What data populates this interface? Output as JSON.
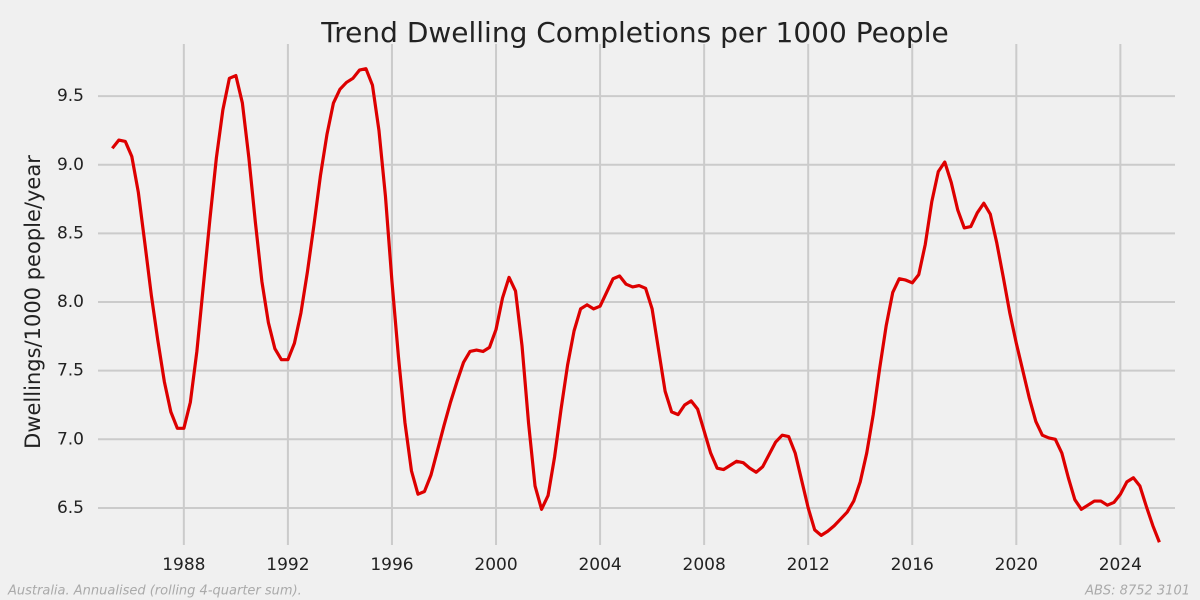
{
  "chart_data": {
    "type": "line",
    "title": "Trend Dwelling Completions per 1000 People",
    "y_label": "Dwellings/1000 people/year",
    "footnote_left": "Australia. Annualised (rolling 4-quarter sum).",
    "footnote_right": "ABS: 8752 3101",
    "grid": true,
    "xlim": [
      1984.7,
      2026.1
    ],
    "ylim": [
      6.23,
      9.88
    ],
    "xticks": [
      1988,
      1992,
      1996,
      2000,
      2004,
      2008,
      2012,
      2016,
      2020,
      2024
    ],
    "yticks": [
      6.5,
      {
        "value": 7,
        "label": "7.0"
      },
      7.5,
      {
        "value": 8,
        "label": "8.0"
      },
      8.5,
      {
        "value": 9,
        "label": "9.0"
      },
      9.5
    ],
    "x": [
      1985.25,
      1985.5,
      1985.75,
      1986,
      1986.25,
      1986.5,
      1986.75,
      1987,
      1987.25,
      1987.5,
      1987.75,
      1988,
      1988.25,
      1988.5,
      1988.75,
      1989,
      1989.25,
      1989.5,
      1989.75,
      1990,
      1990.25,
      1990.5,
      1990.75,
      1991,
      1991.25,
      1991.5,
      1991.75,
      1992,
      1992.25,
      1992.5,
      1992.75,
      1993,
      1993.25,
      1993.5,
      1993.75,
      1994,
      1994.25,
      1994.5,
      1994.75,
      1995,
      1995.25,
      1995.5,
      1995.75,
      1996,
      1996.25,
      1996.5,
      1996.75,
      1997,
      1997.25,
      1997.5,
      1997.75,
      1998,
      1998.25,
      1998.5,
      1998.75,
      1999,
      1999.25,
      1999.5,
      1999.75,
      2000,
      2000.25,
      2000.5,
      2000.75,
      2001,
      2001.25,
      2001.5,
      2001.75,
      2002,
      2002.25,
      2002.5,
      2002.75,
      2003,
      2003.25,
      2003.5,
      2003.75,
      2004,
      2004.25,
      2004.5,
      2004.75,
      2005,
      2005.25,
      2005.5,
      2005.75,
      2006,
      2006.25,
      2006.5,
      2006.75,
      2007,
      2007.25,
      2007.5,
      2007.75,
      2008,
      2008.25,
      2008.5,
      2008.75,
      2009,
      2009.25,
      2009.5,
      2009.75,
      2010,
      2010.25,
      2010.5,
      2010.75,
      2011,
      2011.25,
      2011.5,
      2011.75,
      2012,
      2012.25,
      2012.5,
      2012.75,
      2013,
      2013.25,
      2013.5,
      2013.75,
      2014,
      2014.25,
      2014.5,
      2014.75,
      2015,
      2015.25,
      2015.5,
      2015.75,
      2016,
      2016.25,
      2016.5,
      2016.75,
      2017,
      2017.25,
      2017.5,
      2017.75,
      2018,
      2018.25,
      2018.5,
      2018.75,
      2019,
      2019.25,
      2019.5,
      2019.75,
      2020,
      2020.25,
      2020.5,
      2020.75,
      2021,
      2021.25,
      2021.5,
      2021.75,
      2022,
      2022.25,
      2022.5,
      2022.75,
      2023,
      2023.25,
      2023.5,
      2023.75,
      2024,
      2024.25,
      2024.5,
      2024.75,
      2025,
      2025.25,
      2025.5
    ],
    "series": [
      {
        "color": "#dd0000",
        "values": [
          9.12,
          9.18,
          9.17,
          9.06,
          8.8,
          8.43,
          8.05,
          7.72,
          7.42,
          7.2,
          7.08,
          7.08,
          7.27,
          7.64,
          8.12,
          8.6,
          9.05,
          9.4,
          9.63,
          9.65,
          9.45,
          9.05,
          8.58,
          8.15,
          7.85,
          7.66,
          7.58,
          7.58,
          7.7,
          7.92,
          8.22,
          8.56,
          8.92,
          9.22,
          9.45,
          9.55,
          9.6,
          9.63,
          9.69,
          9.7,
          9.58,
          9.25,
          8.77,
          8.15,
          7.6,
          7.12,
          6.77,
          6.6,
          6.62,
          6.74,
          6.92,
          7.1,
          7.27,
          7.42,
          7.56,
          7.64,
          7.65,
          7.64,
          7.67,
          7.8,
          8.03,
          8.18,
          8.08,
          7.68,
          7.12,
          6.66,
          6.49,
          6.59,
          6.87,
          7.22,
          7.54,
          7.79,
          7.95,
          7.98,
          7.95,
          7.97,
          8.07,
          8.17,
          8.19,
          8.13,
          8.11,
          8.12,
          8.1,
          7.95,
          7.65,
          7.35,
          7.2,
          7.18,
          7.25,
          7.28,
          7.22,
          7.06,
          6.9,
          6.79,
          6.78,
          6.81,
          6.84,
          6.83,
          6.79,
          6.76,
          6.8,
          6.89,
          6.98,
          7.03,
          7.02,
          6.9,
          6.7,
          6.5,
          6.34,
          6.3,
          6.33,
          6.37,
          6.42,
          6.47,
          6.55,
          6.69,
          6.9,
          7.18,
          7.52,
          7.83,
          8.07,
          8.17,
          8.16,
          8.14,
          8.2,
          8.42,
          8.73,
          8.95,
          9.02,
          8.87,
          8.67,
          8.54,
          8.55,
          8.65,
          8.72,
          8.64,
          8.43,
          8.18,
          7.92,
          7.7,
          7.5,
          7.3,
          7.13,
          7.03,
          7.01,
          7.0,
          6.9,
          6.72,
          6.56,
          6.49,
          6.52,
          6.55,
          6.55,
          6.52,
          6.54,
          6.6,
          6.69,
          6.72,
          6.66,
          6.51,
          6.37,
          6.25
        ]
      }
    ]
  }
}
